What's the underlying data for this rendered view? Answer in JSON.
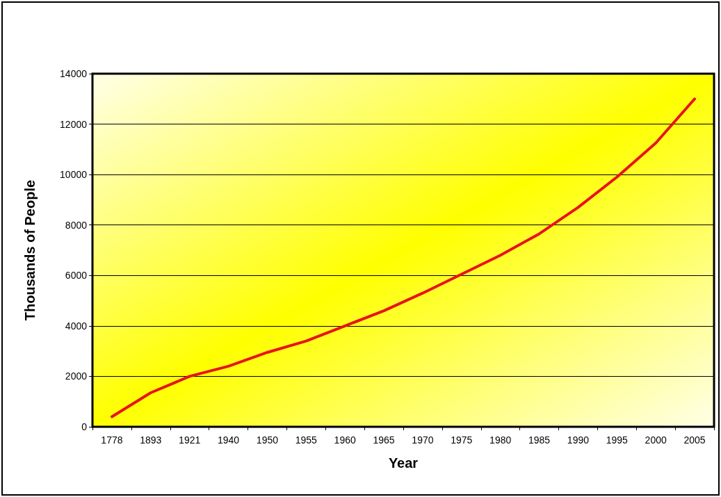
{
  "chart_data": {
    "type": "line",
    "xlabel": "Year",
    "ylabel": "Thousands of People",
    "categories": [
      "1778",
      "1893",
      "1921",
      "1940",
      "1950",
      "1955",
      "1960",
      "1965",
      "1970",
      "1975",
      "1980",
      "1985",
      "1990",
      "1995",
      "2000",
      "2005"
    ],
    "series": [
      {
        "color": "#e8141c",
        "values": [
          400,
          1350,
          2000,
          2400,
          2950,
          3400,
          4000,
          4600,
          5300,
          6050,
          6800,
          7650,
          8700,
          9900,
          11250,
          13000
        ]
      }
    ],
    "ylim": [
      0,
      14000
    ],
    "yticks": [
      0,
      2000,
      4000,
      6000,
      8000,
      10000,
      12000,
      14000
    ],
    "grid": "y",
    "marker": "none",
    "line_style": "solid"
  }
}
